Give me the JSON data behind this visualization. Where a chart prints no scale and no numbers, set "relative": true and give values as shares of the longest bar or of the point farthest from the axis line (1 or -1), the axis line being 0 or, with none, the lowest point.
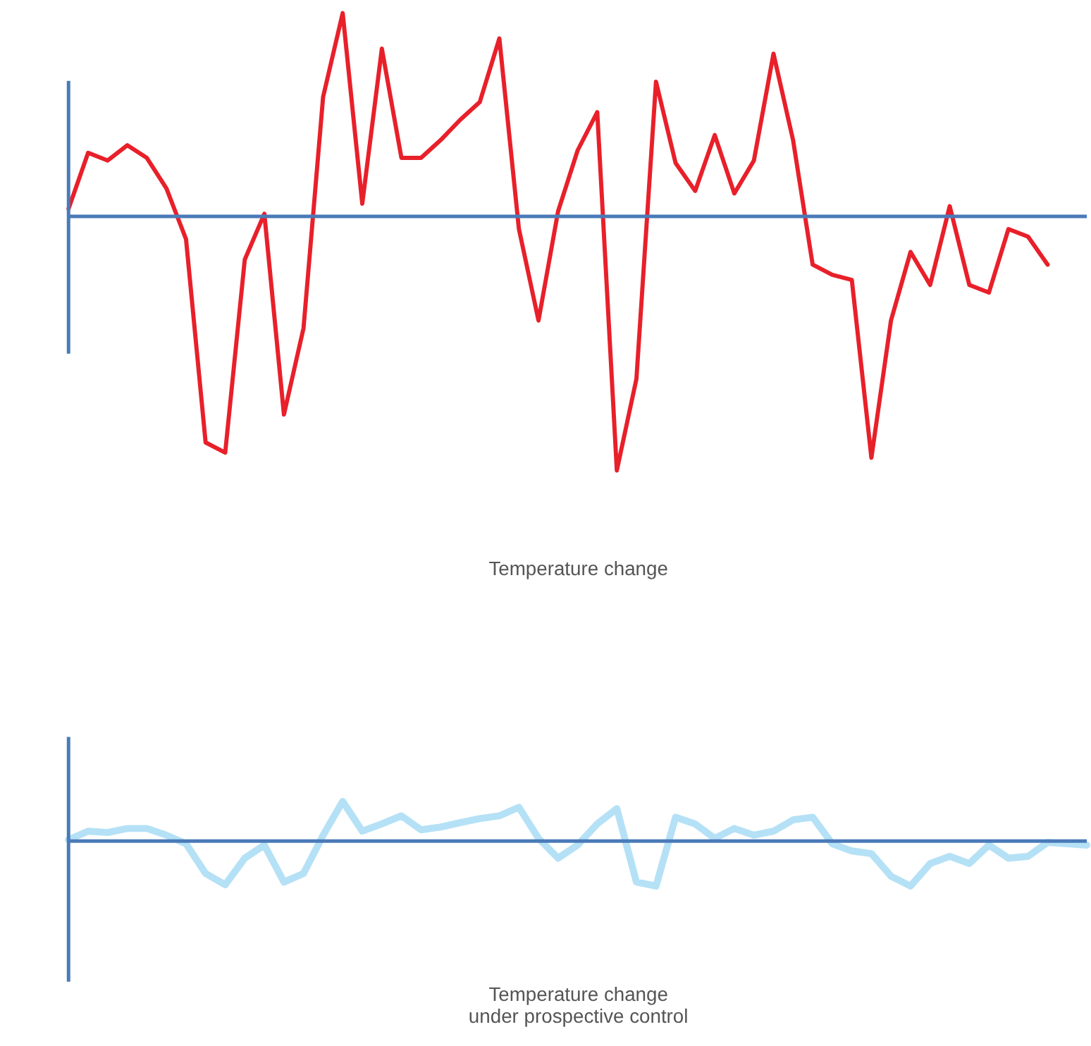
{
  "chart_data": [
    {
      "type": "line",
      "relative": true,
      "xlabel": "Temperature change",
      "ref_lines": [
        {
          "axis": "y",
          "value": 0,
          "color": "#4a7ab8"
        }
      ],
      "categories": [
        null,
        null,
        null,
        null,
        null,
        null,
        null,
        null,
        null,
        null,
        null,
        null,
        null,
        null,
        null,
        null,
        null,
        null,
        null,
        null,
        null,
        null,
        null,
        null,
        null,
        null,
        null,
        null,
        null,
        null,
        null,
        null,
        null,
        null,
        null,
        null,
        null,
        null,
        null,
        null,
        null,
        null,
        null,
        null,
        null,
        null,
        null,
        null,
        null,
        null,
        null,
        null,
        null
      ],
      "series": [
        {
          "color": "#e8202a",
          "values": [
            0.03,
            0.25,
            0.22,
            0.28,
            0.23,
            0.11,
            -0.09,
            -0.89,
            -0.93,
            -0.17,
            0.01,
            -0.78,
            -0.44,
            0.47,
            0.8,
            0.05,
            0.66,
            0.23,
            0.23,
            0.3,
            0.38,
            0.45,
            0.7,
            -0.05,
            -0.41,
            0.02,
            0.26,
            0.41,
            -1,
            -0.64,
            0.53,
            0.21,
            0.1,
            0.32,
            0.09,
            0.22,
            0.64,
            0.3,
            -0.19,
            -0.23,
            -0.25,
            -0.95,
            -0.41,
            -0.14,
            -0.27,
            0.04,
            -0.27,
            -0.3,
            -0.05,
            -0.08,
            -0.19,
            null,
            null
          ]
        }
      ]
    },
    {
      "type": "line",
      "relative": true,
      "xlabel": "Temperature change\nunder prospective control",
      "ref_lines": [
        {
          "axis": "y",
          "value": 0,
          "color": "#4a7ab8"
        }
      ],
      "categories": [
        null,
        null,
        null,
        null,
        null,
        null,
        null,
        null,
        null,
        null,
        null,
        null,
        null,
        null,
        null,
        null,
        null,
        null,
        null,
        null,
        null,
        null,
        null,
        null,
        null,
        null,
        null,
        null,
        null,
        null,
        null,
        null,
        null,
        null,
        null,
        null,
        null,
        null,
        null,
        null,
        null,
        null,
        null,
        null,
        null,
        null,
        null,
        null,
        null,
        null,
        null,
        null,
        null
      ],
      "series": [
        {
          "color": "#a8dcf4",
          "values": [
            0.03,
            0.22,
            0.19,
            0.28,
            0.28,
            0.13,
            -0.06,
            -0.72,
            -0.97,
            -0.38,
            -0.09,
            -0.91,
            -0.72,
            0.13,
            0.88,
            0.22,
            0.38,
            0.56,
            0.25,
            0.31,
            0.41,
            0.5,
            0.56,
            0.75,
            0.06,
            -0.38,
            -0.09,
            0.38,
            0.72,
            -0.91,
            -1,
            0.53,
            0.38,
            0.06,
            0.28,
            0.13,
            0.22,
            0.47,
            0.53,
            -0.06,
            -0.22,
            -0.28,
            -0.78,
            -1,
            -0.5,
            -0.34,
            -0.5,
            -0.09,
            -0.38,
            -0.34,
            -0.03,
            -0.06,
            -0.09
          ]
        }
      ]
    }
  ]
}
